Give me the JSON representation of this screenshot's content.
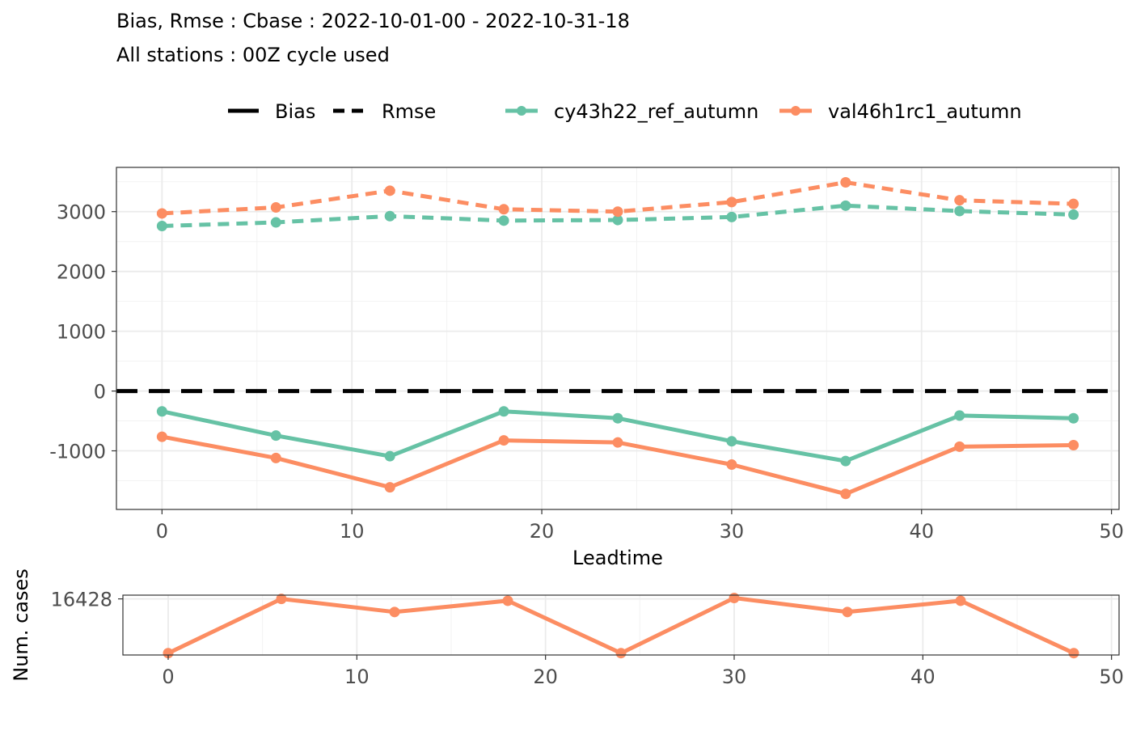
{
  "title_line1": "Bias, Rmse : Cbase : 2022-10-01-00 - 2022-10-31-18",
  "title_line2": "All stations : 00Z cycle used",
  "legend": {
    "linetypes": [
      {
        "label": "Bias",
        "dash": "solid"
      },
      {
        "label": "Rmse",
        "dash": "dashed"
      }
    ],
    "models": [
      {
        "label": "cy43h22_ref_autumn",
        "color": "#66c2a5"
      },
      {
        "label": "val46h1rc1_autumn",
        "color": "#fc8d62"
      }
    ]
  },
  "chart_data": [
    {
      "type": "line",
      "xlabel": "Leadtime",
      "ylabel": "",
      "xlim": [
        -2.4,
        50.4
      ],
      "ylim": [
        -1980,
        3740
      ],
      "x_ticks": [
        0,
        10,
        20,
        30,
        40,
        50
      ],
      "y_ticks": [
        -1000,
        0,
        1000,
        2000,
        3000
      ],
      "grid": true,
      "reference_line": {
        "y": 0,
        "style": "dashed",
        "color": "#000000"
      },
      "x": [
        0,
        6,
        12,
        18,
        24,
        30,
        36,
        42,
        48
      ],
      "series": [
        {
          "name": "cy43h22_ref_autumn",
          "metric": "Bias",
          "color": "#66c2a5",
          "dash": "solid",
          "values": [
            -340,
            -745,
            -1090,
            -340,
            -455,
            -840,
            -1170,
            -410,
            -455
          ]
        },
        {
          "name": "val46h1rc1_autumn",
          "metric": "Bias",
          "color": "#fc8d62",
          "dash": "solid",
          "values": [
            -765,
            -1120,
            -1610,
            -825,
            -860,
            -1230,
            -1720,
            -930,
            -905
          ]
        },
        {
          "name": "cy43h22_ref_autumn",
          "metric": "Rmse",
          "color": "#66c2a5",
          "dash": "dashed",
          "values": [
            2760,
            2820,
            2925,
            2850,
            2860,
            2910,
            3100,
            3010,
            2950
          ]
        },
        {
          "name": "val46h1rc1_autumn",
          "metric": "Rmse",
          "color": "#fc8d62",
          "dash": "dashed",
          "values": [
            2970,
            3070,
            3350,
            3040,
            3000,
            3160,
            3490,
            3190,
            3130
          ]
        }
      ]
    },
    {
      "type": "line",
      "xlabel": "",
      "ylabel": "Num. cases",
      "xlim": [
        -2.4,
        50.4
      ],
      "ylim": [
        16398,
        16430
      ],
      "x_ticks": [
        0,
        10,
        20,
        30,
        40,
        50
      ],
      "y_ticks": [
        16428
      ],
      "grid": true,
      "x": [
        0,
        6,
        12,
        18,
        24,
        30,
        36,
        42,
        48
      ],
      "series": [
        {
          "name": "val46h1rc1_autumn",
          "color": "#fc8d62",
          "dash": "solid",
          "values": [
            16399,
            16428,
            16421,
            16427,
            16399,
            16428.5,
            16421,
            16427,
            16399
          ]
        }
      ]
    }
  ]
}
